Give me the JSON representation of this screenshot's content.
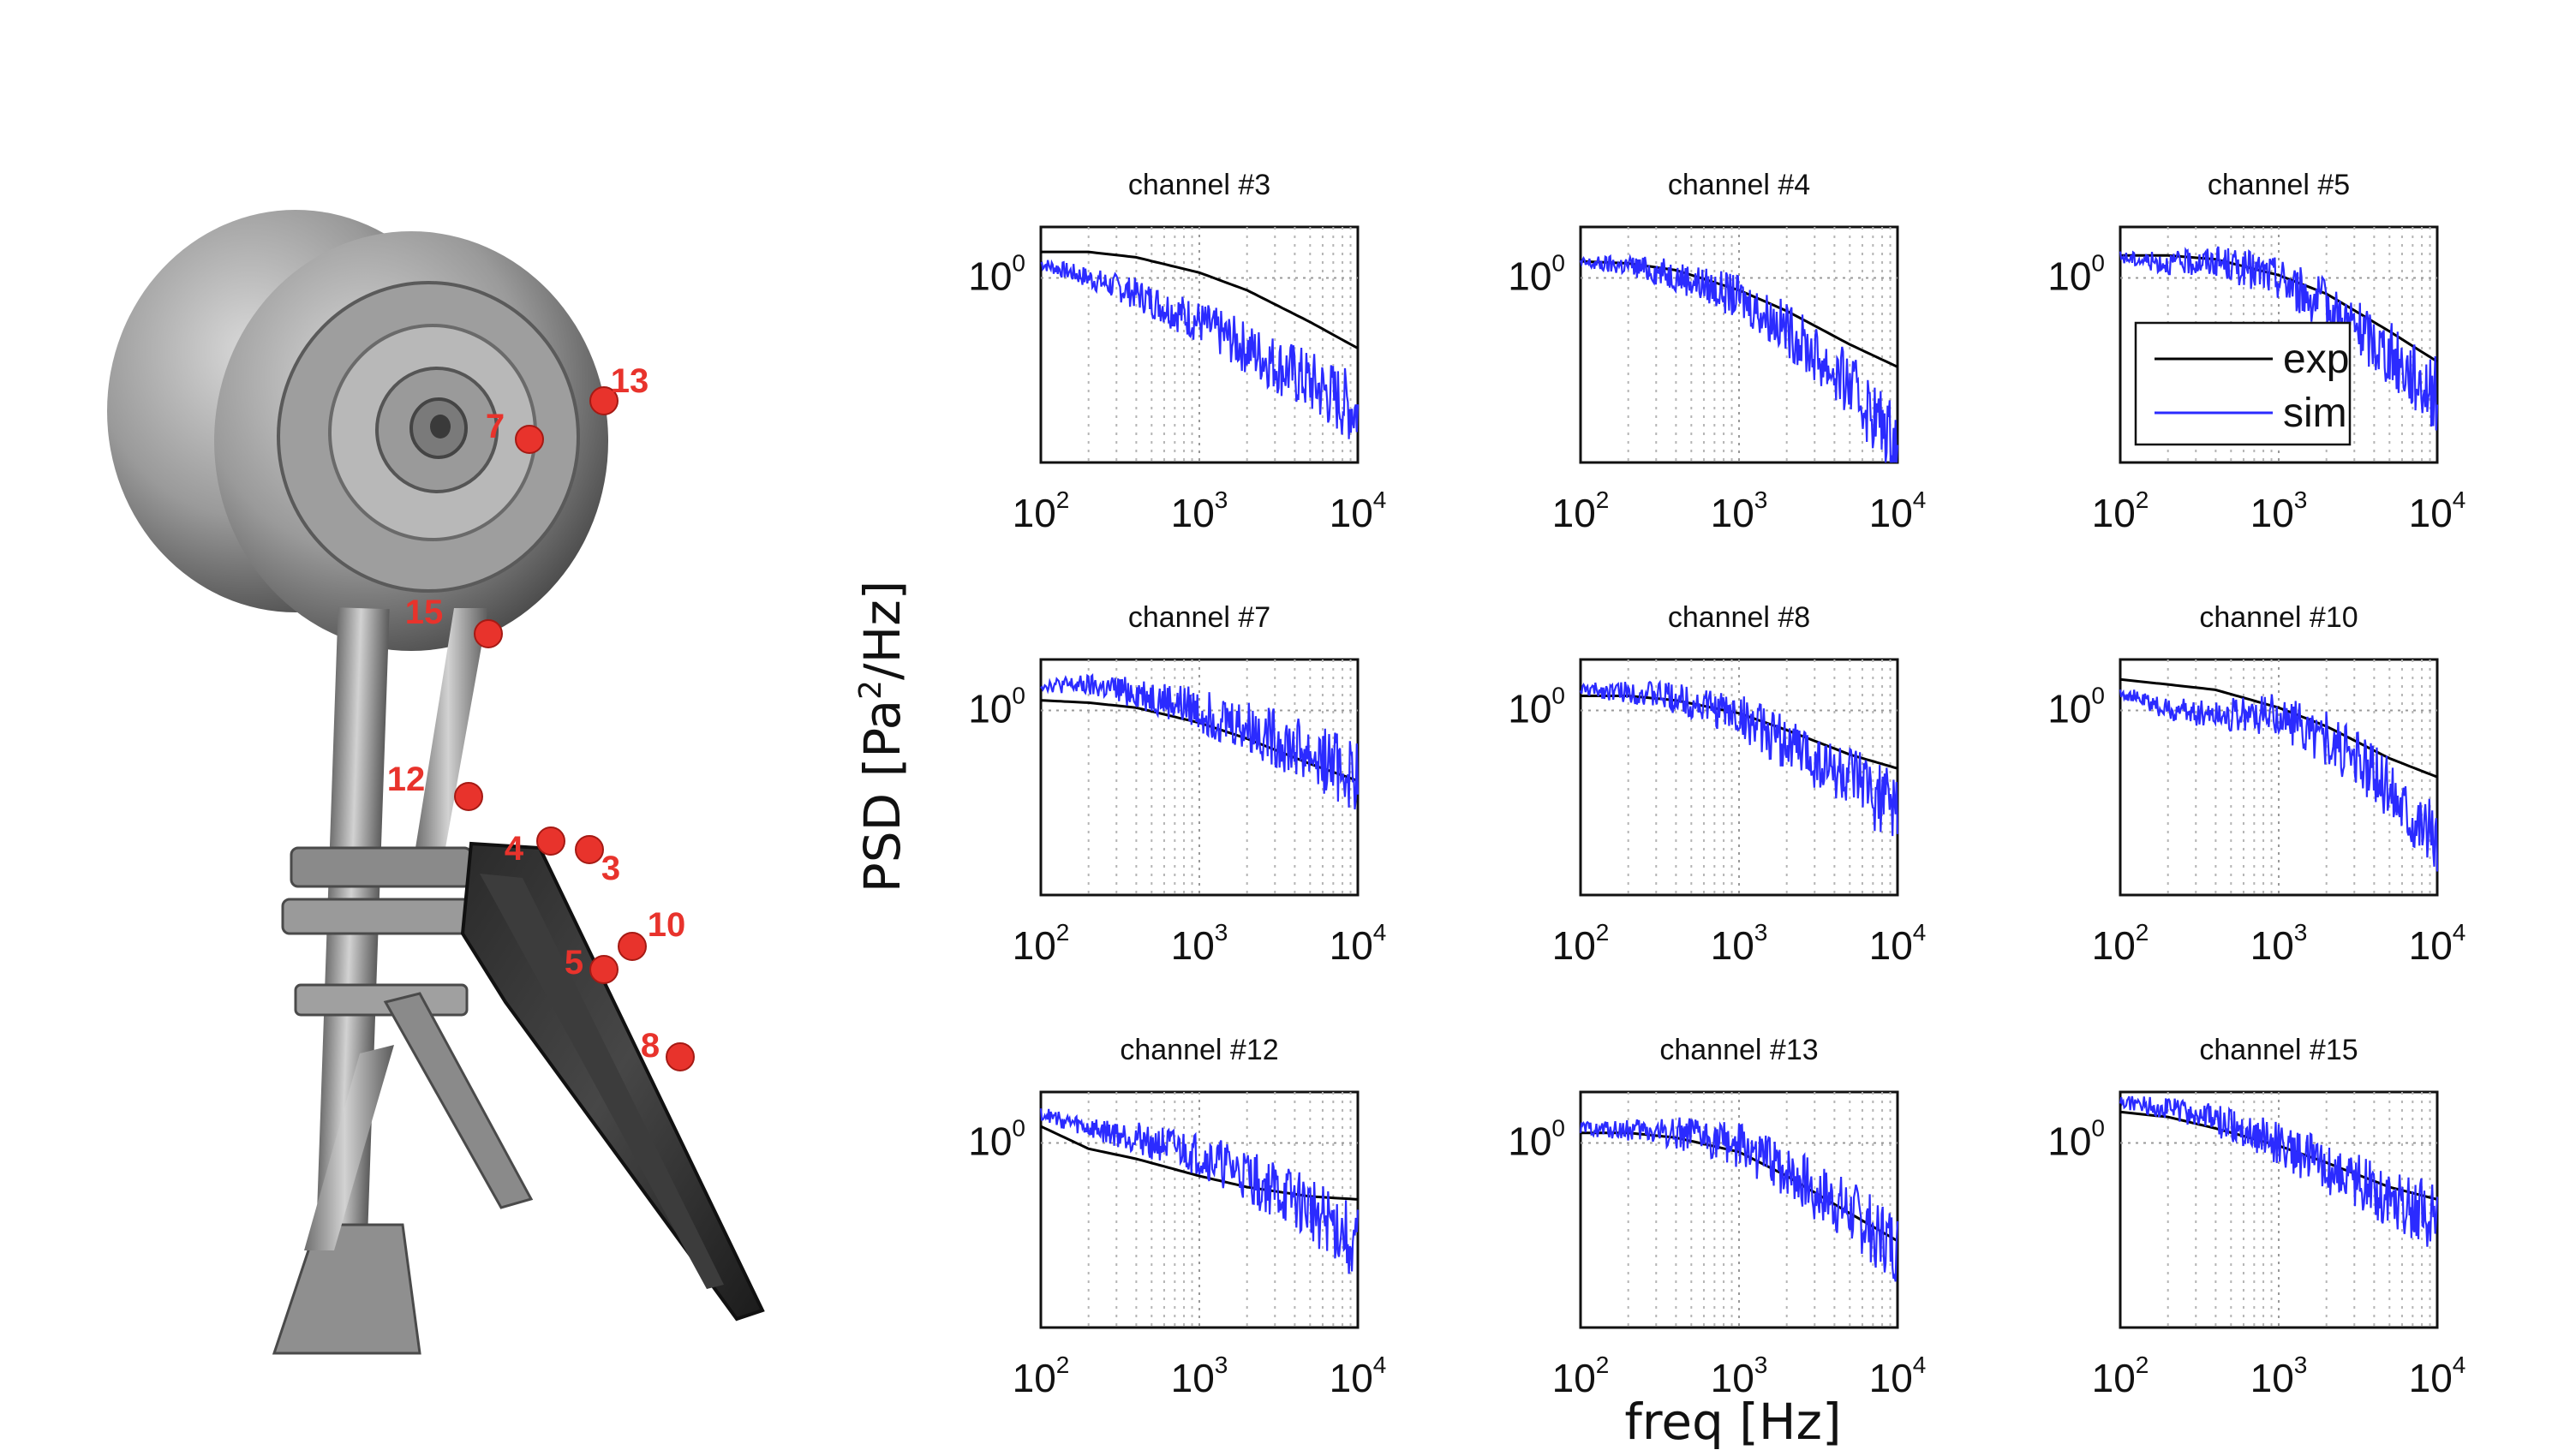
{
  "figure": {
    "ylabel_main": "PSD [Pa",
    "ylabel_sup": "2",
    "ylabel_tail": "/Hz]",
    "xlabel": "freq [Hz]"
  },
  "sensor_labels": [
    "13",
    "7",
    "15",
    "12",
    "4",
    "3",
    "10",
    "5",
    "8"
  ],
  "legend": {
    "exp": "exp",
    "sim": "sim"
  },
  "colors": {
    "exp": "#000000",
    "sim": "#2b2bff",
    "sensor": "#e8332c",
    "sensor_text": "#e8332c"
  },
  "chart_data": [
    {
      "type": "line",
      "title": "channel #3",
      "xlim": [
        100,
        10000
      ],
      "xscale": "log",
      "yscale": "log",
      "y_tick": "10",
      "y_tick_exp": "0",
      "x_ticks": [
        {
          "base": "10",
          "exp": "2"
        },
        {
          "base": "10",
          "exp": "3"
        },
        {
          "base": "10",
          "exp": "4"
        }
      ],
      "grid": true,
      "ylim_decades": [
        -1.45,
        0.4
      ],
      "series": [
        {
          "name": "exp",
          "x": [
            100,
            200,
            400,
            1000,
            2000,
            5000,
            10000
          ],
          "y": [
            1.6,
            1.6,
            1.45,
            1.1,
            0.8,
            0.45,
            0.28
          ]
        },
        {
          "name": "sim",
          "x": [
            100,
            200,
            400,
            1000,
            2000,
            5000,
            10000
          ],
          "y": [
            1.3,
            1.0,
            0.75,
            0.45,
            0.28,
            0.15,
            0.09
          ]
        }
      ]
    },
    {
      "type": "line",
      "title": "channel #4",
      "xlim": [
        100,
        10000
      ],
      "xscale": "log",
      "yscale": "log",
      "y_tick": "10",
      "y_tick_exp": "0",
      "x_ticks": [
        {
          "base": "10",
          "exp": "2"
        },
        {
          "base": "10",
          "exp": "3"
        },
        {
          "base": "10",
          "exp": "4"
        }
      ],
      "grid": true,
      "ylim_decades": [
        -1.45,
        0.4
      ],
      "series": [
        {
          "name": "exp",
          "x": [
            100,
            200,
            400,
            1000,
            2000,
            5000,
            10000
          ],
          "y": [
            1.35,
            1.3,
            1.15,
            0.8,
            0.55,
            0.3,
            0.2
          ]
        },
        {
          "name": "sim",
          "x": [
            100,
            200,
            400,
            1000,
            2000,
            5000,
            10000
          ],
          "y": [
            1.3,
            1.25,
            1.05,
            0.7,
            0.4,
            0.14,
            0.05
          ]
        }
      ]
    },
    {
      "type": "line",
      "title": "channel #5",
      "xlim": [
        100,
        10000
      ],
      "xscale": "log",
      "yscale": "log",
      "y_tick": "10",
      "y_tick_exp": "0",
      "x_ticks": [
        {
          "base": "10",
          "exp": "2"
        },
        {
          "base": "10",
          "exp": "3"
        },
        {
          "base": "10",
          "exp": "4"
        }
      ],
      "grid": true,
      "ylim_decades": [
        -1.45,
        0.4
      ],
      "legend": "inside",
      "series": [
        {
          "name": "exp",
          "x": [
            100,
            200,
            400,
            1000,
            2000,
            5000,
            10000
          ],
          "y": [
            1.5,
            1.5,
            1.4,
            1.05,
            0.75,
            0.38,
            0.22
          ]
        },
        {
          "name": "sim",
          "x": [
            100,
            200,
            400,
            1000,
            2000,
            5000,
            10000
          ],
          "y": [
            1.45,
            1.3,
            1.35,
            1.0,
            0.6,
            0.25,
            0.12
          ]
        }
      ]
    },
    {
      "type": "line",
      "title": "channel #7",
      "xlim": [
        100,
        10000
      ],
      "xscale": "log",
      "yscale": "log",
      "y_tick": "10",
      "y_tick_exp": "0",
      "x_ticks": [
        {
          "base": "10",
          "exp": "2"
        },
        {
          "base": "10",
          "exp": "3"
        },
        {
          "base": "10",
          "exp": "4"
        }
      ],
      "grid": true,
      "ylim_decades": [
        -1.45,
        0.4
      ],
      "series": [
        {
          "name": "exp",
          "x": [
            100,
            200,
            400,
            1000,
            2000,
            5000,
            10000
          ],
          "y": [
            1.2,
            1.15,
            1.05,
            0.8,
            0.6,
            0.38,
            0.28
          ]
        },
        {
          "name": "sim",
          "x": [
            100,
            200,
            400,
            1000,
            2000,
            5000,
            10000
          ],
          "y": [
            1.6,
            1.55,
            1.4,
            1.0,
            0.75,
            0.45,
            0.3
          ]
        }
      ]
    },
    {
      "type": "line",
      "title": "channel #8",
      "xlim": [
        100,
        10000
      ],
      "xscale": "log",
      "yscale": "log",
      "y_tick": "10",
      "y_tick_exp": "0",
      "x_ticks": [
        {
          "base": "10",
          "exp": "2"
        },
        {
          "base": "10",
          "exp": "3"
        },
        {
          "base": "10",
          "exp": "4"
        }
      ],
      "grid": true,
      "ylim_decades": [
        -1.45,
        0.4
      ],
      "series": [
        {
          "name": "exp",
          "x": [
            100,
            200,
            400,
            1000,
            2000,
            5000,
            10000
          ],
          "y": [
            1.3,
            1.3,
            1.2,
            0.95,
            0.7,
            0.45,
            0.35
          ]
        },
        {
          "name": "sim",
          "x": [
            100,
            200,
            400,
            1000,
            2000,
            5000,
            10000
          ],
          "y": [
            1.45,
            1.4,
            1.25,
            0.9,
            0.55,
            0.28,
            0.17
          ]
        }
      ]
    },
    {
      "type": "line",
      "title": "channel #10",
      "xlim": [
        100,
        10000
      ],
      "xscale": "log",
      "yscale": "log",
      "y_tick": "10",
      "y_tick_exp": "0",
      "x_ticks": [
        {
          "base": "10",
          "exp": "2"
        },
        {
          "base": "10",
          "exp": "3"
        },
        {
          "base": "10",
          "exp": "4"
        }
      ],
      "grid": true,
      "ylim_decades": [
        -1.45,
        0.4
      ],
      "series": [
        {
          "name": "exp",
          "x": [
            100,
            200,
            400,
            1000,
            2000,
            5000,
            10000
          ],
          "y": [
            1.75,
            1.6,
            1.45,
            1.05,
            0.75,
            0.42,
            0.3
          ]
        },
        {
          "name": "sim",
          "x": [
            100,
            200,
            400,
            1000,
            2000,
            5000,
            10000
          ],
          "y": [
            1.4,
            1.0,
            0.95,
            0.9,
            0.6,
            0.25,
            0.1
          ]
        }
      ]
    },
    {
      "type": "line",
      "title": "channel #12",
      "xlim": [
        100,
        10000
      ],
      "xscale": "log",
      "yscale": "log",
      "y_tick": "10",
      "y_tick_exp": "0",
      "x_ticks": [
        {
          "base": "10",
          "exp": "2"
        },
        {
          "base": "10",
          "exp": "3"
        },
        {
          "base": "10",
          "exp": "4"
        }
      ],
      "grid": true,
      "ylim_decades": [
        -1.45,
        0.4
      ],
      "series": [
        {
          "name": "exp",
          "x": [
            100,
            200,
            400,
            1000,
            2000,
            5000,
            10000
          ],
          "y": [
            1.35,
            0.9,
            0.75,
            0.55,
            0.45,
            0.38,
            0.36
          ]
        },
        {
          "name": "sim",
          "x": [
            100,
            200,
            400,
            1000,
            2000,
            5000,
            10000
          ],
          "y": [
            1.7,
            1.3,
            1.1,
            0.8,
            0.55,
            0.3,
            0.16
          ]
        }
      ]
    },
    {
      "type": "line",
      "title": "channel #13",
      "xlim": [
        100,
        10000
      ],
      "xscale": "log",
      "yscale": "log",
      "y_tick": "10",
      "y_tick_exp": "0",
      "x_ticks": [
        {
          "base": "10",
          "exp": "2"
        },
        {
          "base": "10",
          "exp": "3"
        },
        {
          "base": "10",
          "exp": "4"
        }
      ],
      "grid": true,
      "ylim_decades": [
        -1.45,
        0.4
      ],
      "series": [
        {
          "name": "exp",
          "x": [
            100,
            200,
            400,
            1000,
            2000,
            5000,
            10000
          ],
          "y": [
            1.2,
            1.2,
            1.1,
            0.85,
            0.55,
            0.28,
            0.17
          ]
        },
        {
          "name": "sim",
          "x": [
            100,
            200,
            400,
            1000,
            2000,
            5000,
            10000
          ],
          "y": [
            1.3,
            1.25,
            1.2,
            0.95,
            0.6,
            0.28,
            0.15
          ]
        }
      ]
    },
    {
      "type": "line",
      "title": "channel #15",
      "xlim": [
        100,
        10000
      ],
      "xscale": "log",
      "yscale": "log",
      "y_tick": "10",
      "y_tick_exp": "0",
      "x_ticks": [
        {
          "base": "10",
          "exp": "2"
        },
        {
          "base": "10",
          "exp": "3"
        },
        {
          "base": "10",
          "exp": "4"
        }
      ],
      "grid": true,
      "ylim_decades": [
        -1.45,
        0.4
      ],
      "series": [
        {
          "name": "exp",
          "x": [
            100,
            200,
            400,
            1000,
            2000,
            5000,
            10000
          ],
          "y": [
            1.75,
            1.6,
            1.3,
            0.95,
            0.7,
            0.45,
            0.36
          ]
        },
        {
          "name": "sim",
          "x": [
            100,
            200,
            400,
            1000,
            2000,
            5000,
            10000
          ],
          "y": [
            2.1,
            1.9,
            1.5,
            1.0,
            0.65,
            0.38,
            0.27
          ]
        }
      ]
    }
  ]
}
